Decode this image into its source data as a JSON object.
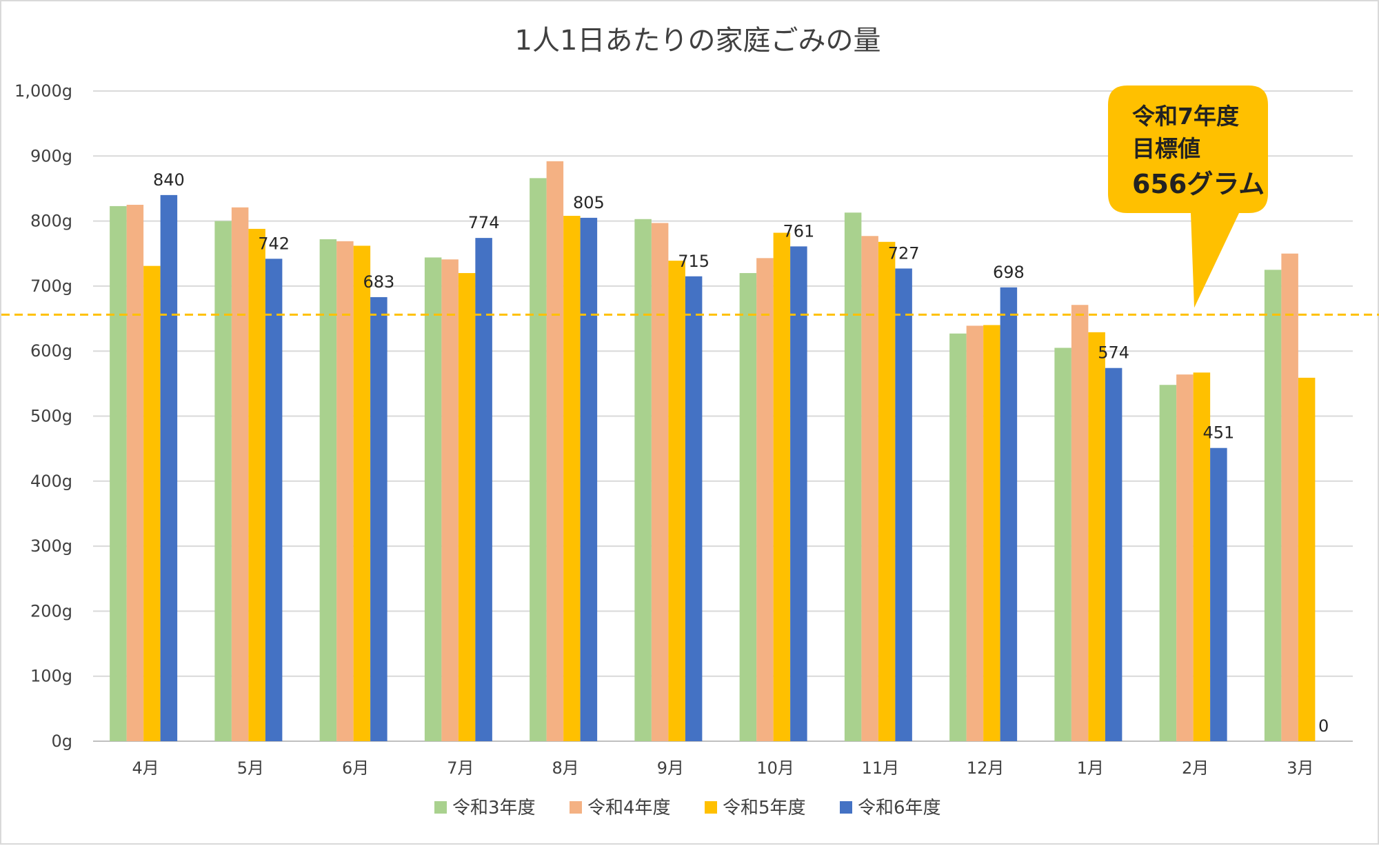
{
  "chart_data": {
    "type": "bar",
    "title": "1人1日あたりの家庭ごみの量",
    "categories": [
      "4月",
      "5月",
      "6月",
      "7月",
      "8月",
      "9月",
      "10月",
      "11月",
      "12月",
      "1月",
      "2月",
      "3月"
    ],
    "yticks": [
      "0g",
      "100g",
      "200g",
      "300g",
      "400g",
      "500g",
      "600g",
      "700g",
      "800g",
      "900g",
      "1,000g"
    ],
    "ylim": [
      0,
      1000
    ],
    "grid": true,
    "legend_position": "bottom",
    "series": [
      {
        "name": "令和3年度",
        "color": "#a9d18e",
        "values": [
          823,
          800,
          772,
          744,
          866,
          803,
          720,
          813,
          627,
          605,
          548,
          725
        ]
      },
      {
        "name": "令和4年度",
        "color": "#f4b183",
        "values": [
          825,
          821,
          769,
          741,
          892,
          797,
          743,
          777,
          639,
          671,
          564,
          750
        ]
      },
      {
        "name": "令和5年度",
        "color": "#ffc000",
        "values": [
          731,
          788,
          762,
          720,
          808,
          739,
          782,
          768,
          640,
          629,
          567,
          559
        ]
      },
      {
        "name": "令和6年度",
        "color": "#4472c4",
        "values": [
          840,
          742,
          683,
          774,
          805,
          715,
          761,
          727,
          698,
          574,
          451,
          0
        ],
        "data_labels": [
          "840",
          "742",
          "683",
          "774",
          "805",
          "715",
          "761",
          "727",
          "698",
          "574",
          "451",
          "0"
        ]
      }
    ],
    "target_line": {
      "value": 656,
      "color": "#ffc000",
      "style": "dashed"
    },
    "callout": {
      "lines": [
        "令和7年度",
        "目標値",
        "656グラム"
      ],
      "color": "#ffc000"
    }
  }
}
